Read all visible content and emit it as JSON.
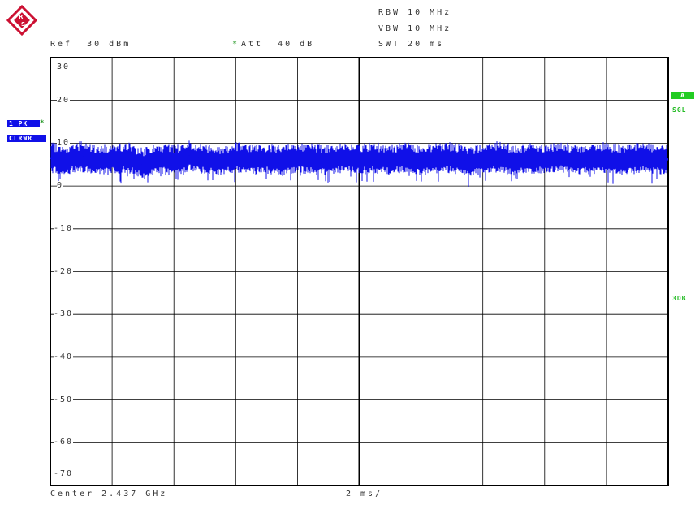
{
  "header": {
    "ref": "Ref  30 dBm",
    "att_star": "*",
    "att": "Att  40 dB",
    "rbw": "RBW 10 MHz",
    "vbw": "VBW 10 MHz",
    "swt": "SWT 20 ms"
  },
  "footer": {
    "center": "Center 2.437 GHz",
    "span": "2 ms/"
  },
  "left_badges": {
    "trace": "1 PK",
    "trace_star": "*",
    "mode": "CLRWR"
  },
  "right_badges": {
    "a": "A",
    "sgl": "SGL",
    "db3": "3DB"
  },
  "colors": {
    "trace": "#1010e8",
    "grid": "#000000",
    "badge_green": "#22cc22",
    "badge_blue": "#1010e8",
    "logo": "#cc1133"
  },
  "logo": {
    "icon": "rohde-schwarz-logo",
    "text": "R&S"
  },
  "chart_data": {
    "type": "line",
    "title": "",
    "xlabel": "",
    "ylabel": "",
    "yticks": [
      "30",
      "20",
      "10",
      "0",
      "-10",
      "-20",
      "-30",
      "-40",
      "-50",
      "-60",
      "-70"
    ],
    "ylim": [
      -75,
      30
    ],
    "xlim": [
      0,
      20
    ],
    "x_unit": "ms",
    "grid": true,
    "series": [
      {
        "name": "",
        "description_level_dbm": {
          "mean": 6,
          "peak": 9,
          "min": 3
        },
        "points": [
          [
            0,
            6.5
          ],
          [
            0.5,
            6.1
          ],
          [
            1,
            6.8
          ],
          [
            1.5,
            5.9
          ],
          [
            2,
            6.3
          ],
          [
            2.5,
            6.6
          ],
          [
            3,
            5.2
          ],
          [
            3.5,
            6.4
          ],
          [
            4,
            6.0
          ],
          [
            4.5,
            6.9
          ],
          [
            5,
            6.2
          ],
          [
            5.5,
            5.8
          ],
          [
            6,
            6.7
          ],
          [
            6.5,
            6.1
          ],
          [
            7,
            6.4
          ],
          [
            7.5,
            5.9
          ],
          [
            8,
            6.6
          ],
          [
            8.5,
            6.3
          ],
          [
            9,
            6.0
          ],
          [
            9.5,
            6.8
          ],
          [
            10,
            6.2
          ],
          [
            10.5,
            6.5
          ],
          [
            11,
            6.1
          ],
          [
            11.5,
            6.7
          ],
          [
            12,
            5.9
          ],
          [
            12.5,
            6.4
          ],
          [
            13,
            6.6
          ],
          [
            13.5,
            5.6
          ],
          [
            14,
            6.3
          ],
          [
            14.5,
            6.8
          ],
          [
            15,
            6.0
          ],
          [
            15.5,
            6.5
          ],
          [
            16,
            6.2
          ],
          [
            16.5,
            6.7
          ],
          [
            17,
            6.1
          ],
          [
            17.5,
            6.4
          ],
          [
            18,
            6.6
          ],
          [
            18.5,
            6.0
          ],
          [
            19,
            6.5
          ],
          [
            19.5,
            6.3
          ],
          [
            20,
            6.2
          ]
        ]
      }
    ]
  }
}
